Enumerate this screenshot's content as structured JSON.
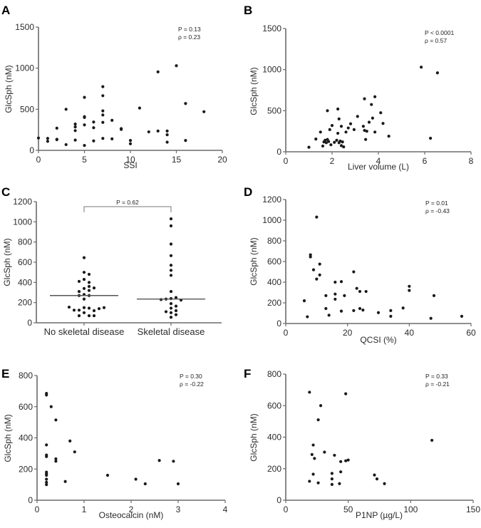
{
  "figure": {
    "point_color": "#1a1a1a",
    "axis_color": "#6b6b6b"
  },
  "chart_data": [
    {
      "panel": "A",
      "type": "scatter",
      "xlabel": "SSI",
      "ylabel": "GlcSph (nM)",
      "xlim": [
        0,
        20
      ],
      "ylim": [
        0,
        1500
      ],
      "xticks": [
        0,
        5,
        10,
        15,
        20
      ],
      "yticks": [
        0,
        500,
        1000,
        1500
      ],
      "annotations": [
        "P = 0.13",
        "ρ = 0.23"
      ],
      "points": [
        [
          0,
          150
        ],
        [
          1,
          145
        ],
        [
          1,
          110
        ],
        [
          2,
          270
        ],
        [
          2,
          135
        ],
        [
          2,
          130
        ],
        [
          3,
          500
        ],
        [
          3,
          70
        ],
        [
          4,
          320
        ],
        [
          4,
          285
        ],
        [
          4,
          240
        ],
        [
          4,
          125
        ],
        [
          5,
          645
        ],
        [
          5,
          410
        ],
        [
          5,
          400
        ],
        [
          5,
          310
        ],
        [
          5,
          60
        ],
        [
          6,
          345
        ],
        [
          6,
          275
        ],
        [
          6,
          115
        ],
        [
          7,
          775
        ],
        [
          7,
          665
        ],
        [
          7,
          480
        ],
        [
          7,
          430
        ],
        [
          7,
          340
        ],
        [
          7,
          145
        ],
        [
          8,
          365
        ],
        [
          8,
          140
        ],
        [
          9,
          265
        ],
        [
          9,
          255
        ],
        [
          10,
          120
        ],
        [
          10,
          80
        ],
        [
          11,
          515
        ],
        [
          12,
          225
        ],
        [
          13,
          955
        ],
        [
          13,
          235
        ],
        [
          14,
          235
        ],
        [
          14,
          190
        ],
        [
          14,
          100
        ],
        [
          15,
          1030
        ],
        [
          16,
          570
        ],
        [
          16,
          120
        ],
        [
          18,
          470
        ]
      ]
    },
    {
      "panel": "B",
      "type": "scatter",
      "xlabel": "Liver volume (L)",
      "ylabel": "GlcSph (nM)",
      "xlim": [
        0,
        8
      ],
      "ylim": [
        0,
        1500
      ],
      "xticks": [
        0,
        2,
        4,
        6,
        8
      ],
      "yticks": [
        0,
        500,
        1000,
        1500
      ],
      "annotations": [
        "P < 0.0001",
        "ρ = 0.57"
      ],
      "points": [
        [
          1.0,
          55
        ],
        [
          1.3,
          155
        ],
        [
          1.5,
          240
        ],
        [
          1.6,
          70
        ],
        [
          1.65,
          120
        ],
        [
          1.7,
          140
        ],
        [
          1.75,
          110
        ],
        [
          1.8,
          500
        ],
        [
          1.8,
          150
        ],
        [
          1.85,
          125
        ],
        [
          1.9,
          270
        ],
        [
          1.95,
          85
        ],
        [
          2.0,
          320
        ],
        [
          2.1,
          115
        ],
        [
          2.2,
          140
        ],
        [
          2.25,
          225
        ],
        [
          2.25,
          520
        ],
        [
          2.3,
          400
        ],
        [
          2.3,
          110
        ],
        [
          2.35,
          130
        ],
        [
          2.4,
          75
        ],
        [
          2.4,
          310
        ],
        [
          2.45,
          120
        ],
        [
          2.5,
          60
        ],
        [
          2.6,
          240
        ],
        [
          2.7,
          290
        ],
        [
          2.8,
          340
        ],
        [
          2.95,
          270
        ],
        [
          3.1,
          430
        ],
        [
          3.35,
          310
        ],
        [
          3.4,
          645
        ],
        [
          3.4,
          260
        ],
        [
          3.45,
          150
        ],
        [
          3.5,
          250
        ],
        [
          3.6,
          360
        ],
        [
          3.7,
          575
        ],
        [
          3.75,
          410
        ],
        [
          3.85,
          670
        ],
        [
          3.85,
          240
        ],
        [
          4.1,
          475
        ],
        [
          4.2,
          345
        ],
        [
          4.45,
          190
        ],
        [
          5.85,
          1030
        ],
        [
          6.25,
          165
        ],
        [
          6.55,
          960
        ]
      ]
    },
    {
      "panel": "C",
      "type": "scatter",
      "subtype": "dot-strip",
      "xlabel": "",
      "ylabel": "GlcSph (nM)",
      "categories": [
        "No skeletal disease",
        "Skeletal disease"
      ],
      "ylim": [
        0,
        1200
      ],
      "yticks": [
        0,
        200,
        400,
        600,
        800,
        1000,
        1200
      ],
      "annotations": [
        "P = 0.62"
      ],
      "medians": [
        270,
        235
      ],
      "groups": [
        {
          "name": "No skeletal disease",
          "values": [
            645,
            500,
            480,
            430,
            400,
            410,
            340,
            320,
            310,
            360,
            345,
            280,
            270,
            270,
            235,
            150,
            145,
            125,
            120,
            125,
            140,
            155,
            150,
            100,
            70,
            70,
            70
          ]
        },
        {
          "name": "Skeletal disease",
          "values": [
            1030,
            960,
            780,
            665,
            570,
            520,
            470,
            310,
            240,
            250,
            235,
            225,
            230,
            190,
            165,
            145,
            120,
            110,
            100,
            80,
            55
          ]
        }
      ]
    },
    {
      "panel": "D",
      "type": "scatter",
      "xlabel": "QCSI (%)",
      "ylabel": "GlcSph (nM)",
      "xlim": [
        0,
        60
      ],
      "ylim": [
        0,
        1200
      ],
      "xticks": [
        0,
        20,
        40,
        60
      ],
      "yticks": [
        0,
        200,
        400,
        600,
        800,
        1000,
        1200
      ],
      "annotations": [
        "P = 0.01",
        "ρ = -0.43"
      ],
      "points": [
        [
          6,
          220
        ],
        [
          7,
          65
        ],
        [
          8,
          665
        ],
        [
          8,
          645
        ],
        [
          9,
          520
        ],
        [
          10,
          1030
        ],
        [
          10,
          430
        ],
        [
          11,
          575
        ],
        [
          11,
          470
        ],
        [
          13,
          270
        ],
        [
          13,
          145
        ],
        [
          14,
          80
        ],
        [
          16,
          400
        ],
        [
          16,
          285
        ],
        [
          16,
          235
        ],
        [
          18,
          405
        ],
        [
          18,
          120
        ],
        [
          19,
          270
        ],
        [
          22,
          500
        ],
        [
          22,
          125
        ],
        [
          23,
          340
        ],
        [
          24,
          310
        ],
        [
          24,
          145
        ],
        [
          25,
          130
        ],
        [
          26,
          310
        ],
        [
          30,
          105
        ],
        [
          34,
          125
        ],
        [
          34,
          70
        ],
        [
          38,
          150
        ],
        [
          40,
          360
        ],
        [
          40,
          320
        ],
        [
          47,
          50
        ],
        [
          48,
          270
        ],
        [
          57,
          70
        ]
      ]
    },
    {
      "panel": "E",
      "type": "scatter",
      "xlabel": "Osteocalcin (nM)",
      "ylabel": "GlcSph (nM)",
      "xlim": [
        0,
        4
      ],
      "ylim": [
        0,
        800
      ],
      "xticks": [
        0,
        1,
        2,
        3,
        4
      ],
      "yticks": [
        0,
        200,
        400,
        600,
        800
      ],
      "annotations": [
        "P = 0.30",
        "ρ = -0.22"
      ],
      "points": [
        [
          0.2,
          685
        ],
        [
          0.2,
          675
        ],
        [
          0.2,
          355
        ],
        [
          0.2,
          290
        ],
        [
          0.2,
          280
        ],
        [
          0.2,
          180
        ],
        [
          0.2,
          170
        ],
        [
          0.2,
          160
        ],
        [
          0.2,
          135
        ],
        [
          0.2,
          115
        ],
        [
          0.2,
          100
        ],
        [
          0.3,
          600
        ],
        [
          0.4,
          515
        ],
        [
          0.4,
          265
        ],
        [
          0.4,
          250
        ],
        [
          0.6,
          120
        ],
        [
          0.7,
          380
        ],
        [
          0.8,
          310
        ],
        [
          1.5,
          160
        ],
        [
          2.1,
          135
        ],
        [
          2.3,
          105
        ],
        [
          2.6,
          255
        ],
        [
          2.9,
          250
        ],
        [
          3.0,
          105
        ]
      ]
    },
    {
      "panel": "F",
      "type": "scatter",
      "xlabel": "P1NP (µg/L)",
      "ylabel": "GlcSph (nM)",
      "xlim": [
        0,
        150
      ],
      "ylim": [
        0,
        800
      ],
      "xticks": [
        0,
        50,
        100,
        150
      ],
      "yticks": [
        0,
        200,
        400,
        600,
        800
      ],
      "annotations": [
        "P = 0.33",
        "ρ = -0.21"
      ],
      "points": [
        [
          19,
          685
        ],
        [
          19,
          120
        ],
        [
          21,
          290
        ],
        [
          22,
          350
        ],
        [
          22,
          165
        ],
        [
          23,
          265
        ],
        [
          26,
          510
        ],
        [
          26,
          110
        ],
        [
          28,
          600
        ],
        [
          31,
          305
        ],
        [
          37,
          170
        ],
        [
          37,
          135
        ],
        [
          37,
          100
        ],
        [
          39,
          285
        ],
        [
          43,
          105
        ],
        [
          44,
          245
        ],
        [
          44,
          180
        ],
        [
          48,
          675
        ],
        [
          48,
          250
        ],
        [
          50,
          255
        ],
        [
          71,
          160
        ],
        [
          73,
          135
        ],
        [
          79,
          105
        ],
        [
          117,
          380
        ]
      ]
    }
  ]
}
